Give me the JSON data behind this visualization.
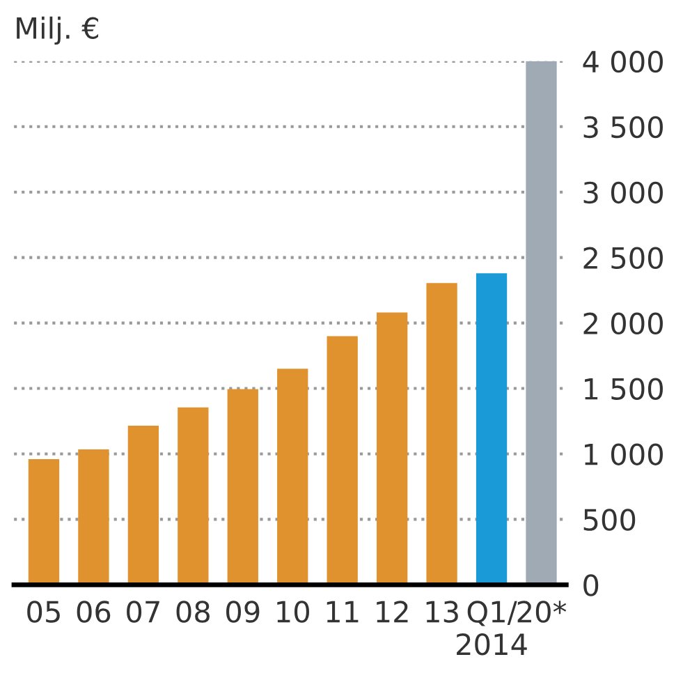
{
  "chart_data": {
    "type": "bar",
    "ylabel": "Milj. €",
    "categories": [
      "05",
      "06",
      "07",
      "08",
      "09",
      "10",
      "11",
      "12",
      "13",
      "Q1/\n2014",
      "20*"
    ],
    "values": [
      960,
      1035,
      1215,
      1355,
      1495,
      1650,
      1900,
      2080,
      2305,
      2380,
      4000
    ],
    "colors": [
      "#e0922f",
      "#e0922f",
      "#e0922f",
      "#e0922f",
      "#e0922f",
      "#e0922f",
      "#e0922f",
      "#e0922f",
      "#e0922f",
      "#1a9bd7",
      "#a0aab4"
    ],
    "ylim": [
      0,
      4000
    ],
    "yticks": [
      0,
      500,
      {
        "value": 1000,
        "label": "1 000"
      },
      {
        "value": 1500,
        "label": "1 500"
      },
      {
        "value": 2000,
        "label": "2 000"
      },
      {
        "value": 2500,
        "label": "2 500"
      },
      {
        "value": 3000,
        "label": "3 000"
      },
      {
        "value": 3500,
        "label": "3 500"
      },
      {
        "value": 4000,
        "label": "4 000"
      }
    ],
    "grid": "y",
    "line_style": "dotted"
  }
}
